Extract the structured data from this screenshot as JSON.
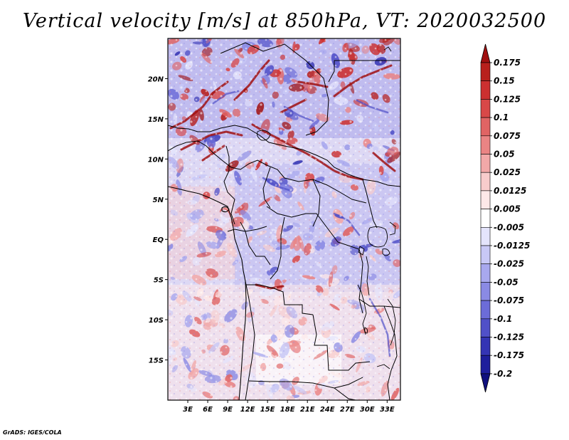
{
  "title": "Vertical velocity [m/s] at 850hPa, VT: 2020032500",
  "credit": "GrADS: IGES/COLA",
  "map": {
    "lat_labels": [
      "20N",
      "15N",
      "10N",
      "5N",
      "EQ",
      "5S",
      "10S",
      "15S"
    ],
    "lat_values": [
      20,
      15,
      10,
      5,
      0,
      -5,
      -10,
      -15
    ],
    "lon_labels": [
      "3E",
      "6E",
      "9E",
      "12E",
      "15E",
      "18E",
      "21E",
      "24E",
      "27E",
      "30E",
      "33E"
    ],
    "lon_values": [
      3,
      6,
      9,
      12,
      15,
      18,
      21,
      24,
      27,
      30,
      33
    ],
    "lon_range": [
      0,
      35
    ],
    "lat_range": [
      -20,
      25
    ]
  },
  "colorbar": {
    "labels": [
      "0.175",
      "0.15",
      "0.125",
      "0.1",
      "0.075",
      "0.05",
      "0.025",
      "0.0125",
      "0.005",
      "-0.005",
      "-0.0125",
      "-0.025",
      "-0.05",
      "-0.075",
      "-0.1",
      "-0.125",
      "-0.175",
      "-0.2"
    ],
    "colors": [
      "#a01010",
      "#b8201c",
      "#cc3030",
      "#d84848",
      "#e06464",
      "#ea8484",
      "#f2a8a8",
      "#f8cccc",
      "#fde8e8",
      "#ffffff",
      "#e4e4fc",
      "#c8c8f6",
      "#a8a8ee",
      "#8a8ae4",
      "#6c6cd8",
      "#5050c8",
      "#3434b4",
      "#1e1e9c",
      "#10107e"
    ]
  }
}
